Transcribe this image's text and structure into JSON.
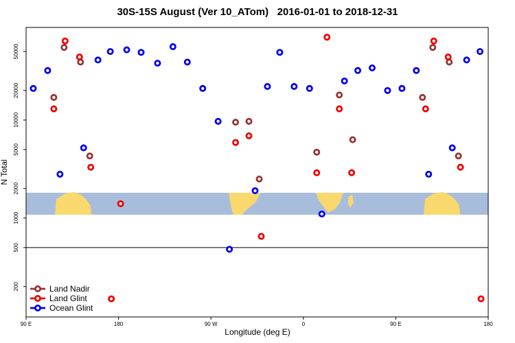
{
  "chart_data": {
    "type": "scatter",
    "title": "30S-15S August (Ver 10_ATom)   2016-01-01 to 2018-12-31",
    "x_label": "Longitude (deg E)",
    "y_label": "N Total",
    "y_scale": "log",
    "legend": "bottom left",
    "xlim": [
      90,
      540
    ],
    "xticks": [
      {
        "value": 90,
        "label": "90 E"
      },
      {
        "value": 180,
        "label": "180"
      },
      {
        "value": 270,
        "label": "90 W"
      },
      {
        "value": 360,
        "label": "0"
      },
      {
        "value": 450,
        "label": "90 E"
      },
      {
        "value": 540,
        "label": "180"
      }
    ],
    "ylim": [
      98,
      88000
    ],
    "yticks": [
      200,
      500,
      1000,
      2000,
      5000,
      10000,
      20000,
      50000
    ],
    "hline": 500,
    "series": [
      {
        "name": "Land Nadir",
        "color": "#993333",
        "x": [
          117,
          127,
          143,
          152,
          294,
          307,
          317,
          373,
          395,
          408,
          476,
          486,
          502,
          511
        ],
        "values": [
          17000,
          55000,
          39000,
          4300,
          9500,
          9700,
          2500,
          4700,
          18000,
          6300,
          17000,
          55000,
          39000,
          4300
        ]
      },
      {
        "name": "Land Glint",
        "color": "#ee0000",
        "x": [
          117,
          128,
          142,
          153,
          173,
          182,
          294,
          307,
          319,
          373,
          383,
          395,
          407,
          479,
          487,
          501,
          513,
          533
        ],
        "values": [
          13000,
          64000,
          44000,
          3300,
          150,
          1400,
          5900,
          6900,
          650,
          2900,
          70000,
          13000,
          2900,
          13000,
          64000,
          44000,
          3300,
          150
        ]
      },
      {
        "name": "Ocean Glint",
        "color": "#0000ee",
        "x": [
          97,
          111,
          123,
          146,
          160,
          172,
          188,
          202,
          218,
          233,
          247,
          262,
          277,
          288,
          313,
          325,
          337,
          351,
          366,
          378,
          400,
          413,
          427,
          442,
          456,
          470,
          482,
          505,
          519,
          532
        ],
        "values": [
          21000,
          32000,
          2800,
          5200,
          41000,
          50000,
          52000,
          49000,
          38000,
          56000,
          39000,
          21000,
          9700,
          480,
          1900,
          22000,
          49000,
          22000,
          21000,
          1100,
          25000,
          32000,
          34000,
          20000,
          21000,
          32000,
          2800,
          5200,
          41000,
          50000
        ]
      }
    ]
  }
}
